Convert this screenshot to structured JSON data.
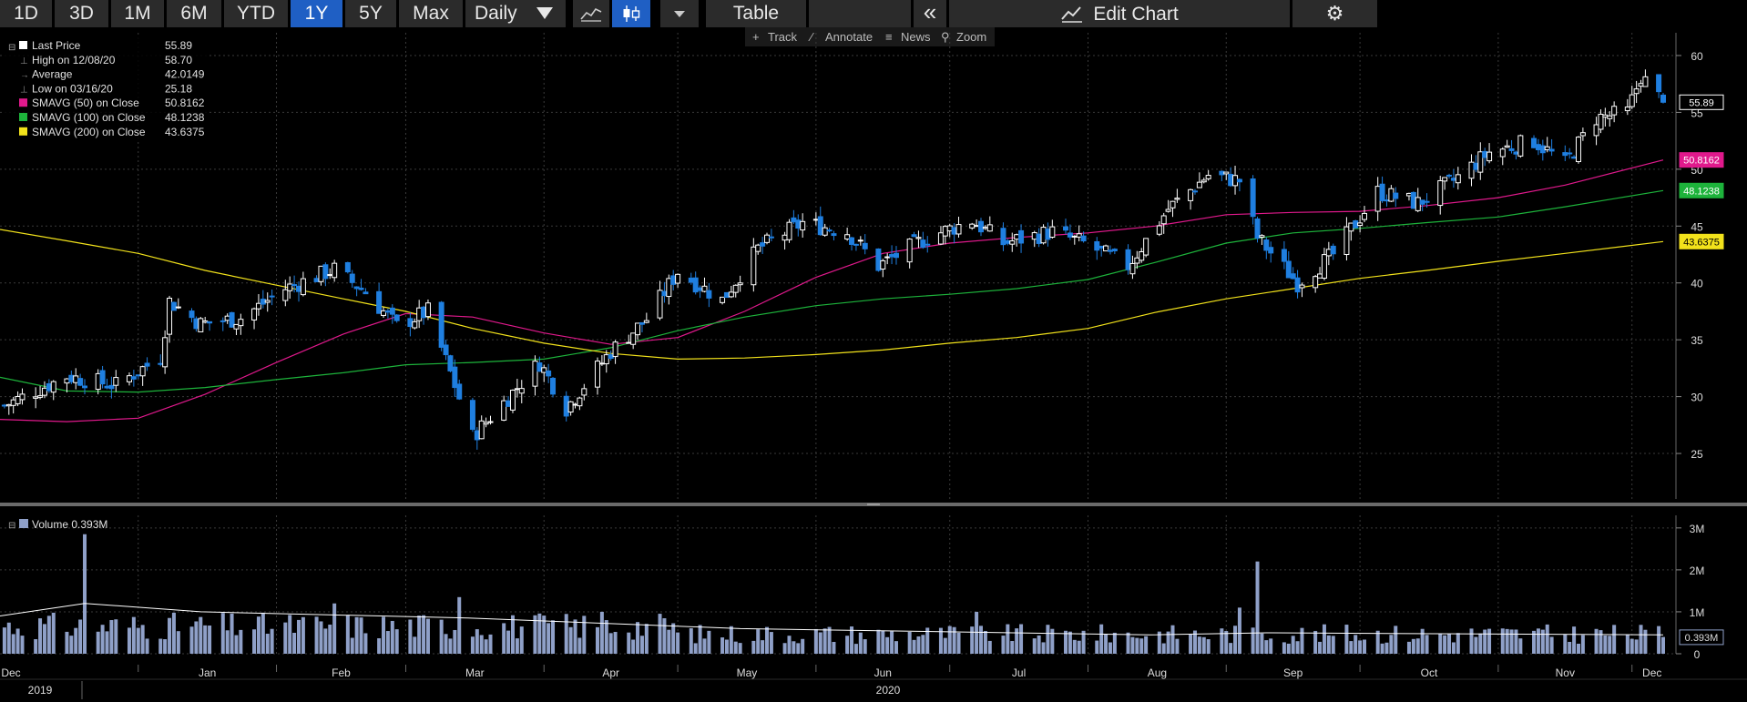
{
  "toolbar": {
    "ranges": [
      "1D",
      "3D",
      "1M",
      "6M",
      "YTD",
      "1Y",
      "5Y",
      "Max"
    ],
    "active_range": "1Y",
    "interval_label": "Daily",
    "table_label": "Table",
    "collapse_label": "«",
    "edit_chart_label": "Edit Chart",
    "icons": [
      "line-chart-icon",
      "candlestick-icon",
      "dropdown-arrow-icon",
      "gear-icon"
    ]
  },
  "subtoolbar": {
    "track": "Track",
    "annotate": "Annotate",
    "news": "News",
    "zoom": "Zoom"
  },
  "legend": {
    "rows": [
      {
        "label": "Last Price",
        "value": "55.89",
        "color": "#ffffff"
      },
      {
        "label": "High on 12/08/20",
        "value": "58.70",
        "color": null
      },
      {
        "label": "Average",
        "value": "42.0149",
        "color": null
      },
      {
        "label": "Low on 03/16/20",
        "value": "25.18",
        "color": null
      },
      {
        "label": "SMAVG (50)  on Close",
        "value": "50.8162",
        "color": "#e0198c"
      },
      {
        "label": "SMAVG (100)  on Close",
        "value": "48.1238",
        "color": "#1db33b"
      },
      {
        "label": "SMAVG (200)  on Close",
        "value": "43.6375",
        "color": "#f2e21b"
      }
    ],
    "volume_label": "Volume 0.393M"
  },
  "chart_data": [
    {
      "type": "candlestick",
      "title": "",
      "ylim": [
        21,
        62
      ],
      "y_ticks": [
        25,
        30,
        35,
        40,
        45,
        50,
        55,
        60
      ],
      "x_ticks": [
        "Dec",
        "Jan",
        "Feb",
        "Mar",
        "Apr",
        "May",
        "Jun",
        "Jul",
        "Aug",
        "Sep",
        "Oct",
        "Nov",
        "Dec"
      ],
      "x_years": [
        "2019",
        "2020"
      ],
      "x_range": [
        "2019-12-01",
        "2020-12-08"
      ],
      "grid": true,
      "legend_position": "top-left",
      "series": [
        {
          "name": "Last Price",
          "points": [
            [
              "2019-12-02",
              29.2
            ],
            [
              "2019-12-16",
              31.8
            ],
            [
              "2019-12-27",
              31.0
            ],
            [
              "2020-01-06",
              33.5
            ],
            [
              "2020-01-08",
              38.4
            ],
            [
              "2020-01-15",
              36.4
            ],
            [
              "2020-01-24",
              36.9
            ],
            [
              "2020-02-03",
              39.5
            ],
            [
              "2020-02-14",
              41.2
            ],
            [
              "2020-02-21",
              39.2
            ],
            [
              "2020-02-28",
              36.2
            ],
            [
              "2020-03-06",
              37.5
            ],
            [
              "2020-03-12",
              31.0
            ],
            [
              "2020-03-16",
              26.5
            ],
            [
              "2020-03-23",
              29.5
            ],
            [
              "2020-03-31",
              33.0
            ],
            [
              "2020-04-06",
              29.0
            ],
            [
              "2020-04-16",
              34.0
            ],
            [
              "2020-04-24",
              36.8
            ],
            [
              "2020-05-01",
              41.0
            ],
            [
              "2020-05-11",
              38.5
            ],
            [
              "2020-05-19",
              43.0
            ],
            [
              "2020-05-29",
              45.3
            ],
            [
              "2020-06-08",
              44.5
            ],
            [
              "2020-06-15",
              41.5
            ],
            [
              "2020-06-26",
              44.0
            ],
            [
              "2020-07-06",
              45.5
            ],
            [
              "2020-07-13",
              43.5
            ],
            [
              "2020-07-24",
              44.5
            ],
            [
              "2020-07-31",
              43.5
            ],
            [
              "2020-08-10",
              41.5
            ],
            [
              "2020-08-19",
              46.5
            ],
            [
              "2020-08-28",
              49.5
            ],
            [
              "2020-09-04",
              49.0
            ],
            [
              "2020-09-08",
              44.0
            ],
            [
              "2020-09-17",
              40.0
            ],
            [
              "2020-09-25",
              42.5
            ],
            [
              "2020-10-05",
              48.0
            ],
            [
              "2020-10-14",
              47.0
            ],
            [
              "2020-10-22",
              49.0
            ],
            [
              "2020-10-30",
              51.5
            ],
            [
              "2020-11-09",
              52.5
            ],
            [
              "2020-11-16",
              50.5
            ],
            [
              "2020-11-23",
              54.5
            ],
            [
              "2020-11-30",
              55.0
            ],
            [
              "2020-12-03",
              58.2
            ],
            [
              "2020-12-08",
              55.89
            ]
          ],
          "last_value": "55.89",
          "color_up": "#ffffff",
          "color_down": "#1f7fe0"
        },
        {
          "name": "SMAVG (50)  on Close",
          "color": "#e0198c",
          "last_value": "50.8162",
          "points": [
            [
              "2019-12-01",
              28.0
            ],
            [
              "2019-12-16",
              27.8
            ],
            [
              "2020-01-01",
              28.1
            ],
            [
              "2020-01-16",
              30.2
            ],
            [
              "2020-02-01",
              33.0
            ],
            [
              "2020-02-16",
              35.5
            ],
            [
              "2020-03-01",
              37.3
            ],
            [
              "2020-03-16",
              37.0
            ],
            [
              "2020-04-01",
              35.6
            ],
            [
              "2020-04-16",
              34.6
            ],
            [
              "2020-05-01",
              35.2
            ],
            [
              "2020-05-16",
              37.5
            ],
            [
              "2020-06-01",
              40.5
            ],
            [
              "2020-06-16",
              42.6
            ],
            [
              "2020-07-01",
              43.5
            ],
            [
              "2020-07-16",
              44.0
            ],
            [
              "2020-08-01",
              44.4
            ],
            [
              "2020-08-16",
              45.0
            ],
            [
              "2020-09-01",
              46.0
            ],
            [
              "2020-09-16",
              46.2
            ],
            [
              "2020-10-01",
              46.3
            ],
            [
              "2020-10-16",
              46.8
            ],
            [
              "2020-11-01",
              47.5
            ],
            [
              "2020-11-16",
              48.6
            ],
            [
              "2020-12-08",
              50.8162
            ]
          ]
        },
        {
          "name": "SMAVG (100)  on Close",
          "color": "#1db33b",
          "last_value": "48.1238",
          "points": [
            [
              "2019-12-01",
              31.7
            ],
            [
              "2019-12-16",
              30.5
            ],
            [
              "2020-01-01",
              30.4
            ],
            [
              "2020-01-16",
              30.8
            ],
            [
              "2020-02-01",
              31.5
            ],
            [
              "2020-02-16",
              32.1
            ],
            [
              "2020-03-01",
              32.8
            ],
            [
              "2020-03-16",
              33.0
            ],
            [
              "2020-04-01",
              33.3
            ],
            [
              "2020-04-16",
              34.3
            ],
            [
              "2020-05-01",
              35.8
            ],
            [
              "2020-05-16",
              37.0
            ],
            [
              "2020-06-01",
              38.0
            ],
            [
              "2020-06-16",
              38.6
            ],
            [
              "2020-07-01",
              39.0
            ],
            [
              "2020-07-16",
              39.5
            ],
            [
              "2020-08-01",
              40.3
            ],
            [
              "2020-08-16",
              41.8
            ],
            [
              "2020-09-01",
              43.5
            ],
            [
              "2020-09-16",
              44.4
            ],
            [
              "2020-10-01",
              44.8
            ],
            [
              "2020-10-16",
              45.3
            ],
            [
              "2020-11-01",
              45.8
            ],
            [
              "2020-11-16",
              46.7
            ],
            [
              "2020-12-08",
              48.1238
            ]
          ]
        },
        {
          "name": "SMAVG (200)  on Close",
          "color": "#f2e21b",
          "last_value": "43.6375",
          "points": [
            [
              "2019-12-01",
              44.7
            ],
            [
              "2019-12-16",
              43.7
            ],
            [
              "2020-01-01",
              42.6
            ],
            [
              "2020-01-16",
              41.1
            ],
            [
              "2020-02-01",
              39.8
            ],
            [
              "2020-02-16",
              38.6
            ],
            [
              "2020-03-01",
              37.5
            ],
            [
              "2020-03-16",
              36.0
            ],
            [
              "2020-04-01",
              34.7
            ],
            [
              "2020-04-16",
              33.8
            ],
            [
              "2020-05-01",
              33.3
            ],
            [
              "2020-05-16",
              33.4
            ],
            [
              "2020-06-01",
              33.7
            ],
            [
              "2020-06-16",
              34.1
            ],
            [
              "2020-07-01",
              34.7
            ],
            [
              "2020-07-16",
              35.2
            ],
            [
              "2020-08-01",
              36.0
            ],
            [
              "2020-08-16",
              37.4
            ],
            [
              "2020-09-01",
              38.6
            ],
            [
              "2020-09-16",
              39.5
            ],
            [
              "2020-10-01",
              40.4
            ],
            [
              "2020-10-16",
              41.1
            ],
            [
              "2020-11-01",
              41.9
            ],
            [
              "2020-11-16",
              42.6
            ],
            [
              "2020-12-08",
              43.6375
            ]
          ]
        }
      ]
    },
    {
      "type": "bar",
      "title": "",
      "ylim": [
        0,
        3.3
      ],
      "y_ticks": [
        0,
        1,
        2,
        3
      ],
      "y_tick_labels": [
        "0",
        "1M",
        "2M",
        "3M"
      ],
      "grid": true,
      "series": [
        {
          "name": "Volume",
          "color": "#8fa0c8",
          "last_value": "0.393M",
          "approx_level": 0.7,
          "spikes": [
            [
              "2019-12-20",
              2.85
            ],
            [
              "2020-02-14",
              1.2
            ],
            [
              "2020-03-13",
              1.35
            ],
            [
              "2020-04-14",
              1.0
            ],
            [
              "2020-07-07",
              1.0
            ],
            [
              "2020-09-04",
              1.1
            ],
            [
              "2020-09-08",
              2.2
            ]
          ]
        },
        {
          "name": "Volume average",
          "color": "#ffffff",
          "points": [
            [
              "2019-12-01",
              0.9
            ],
            [
              "2019-12-20",
              1.2
            ],
            [
              "2020-01-15",
              1.0
            ],
            [
              "2020-03-15",
              0.85
            ],
            [
              "2020-05-15",
              0.6
            ],
            [
              "2020-08-15",
              0.45
            ],
            [
              "2020-09-10",
              0.5
            ],
            [
              "2020-12-08",
              0.45
            ]
          ]
        }
      ]
    }
  ]
}
